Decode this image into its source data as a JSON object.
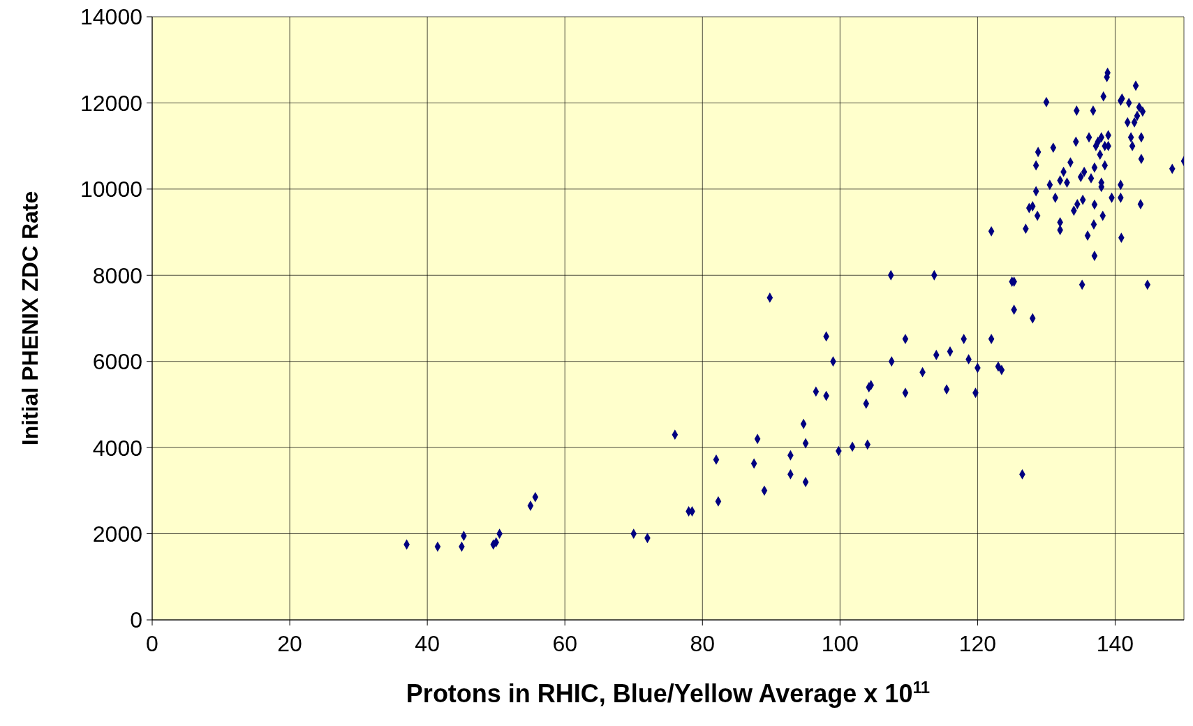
{
  "chart_data": {
    "type": "scatter",
    "xlabel": "Protons in RHIC, Blue/Yellow Average x 10$^{11}$",
    "ylabel": "Initial PHENIX ZDC Rate",
    "xlim": [
      0,
      150
    ],
    "xticks": [
      0,
      20,
      40,
      60,
      80,
      100,
      120,
      140
    ],
    "ylim": [
      0,
      14000
    ],
    "yticks": [
      0,
      2000,
      4000,
      6000,
      8000,
      10000,
      12000,
      14000
    ],
    "grid": true,
    "legend": false,
    "marker": "diamond",
    "series": [
      {
        "color": "#000080",
        "x": [
          37,
          41.5,
          45,
          45.3,
          49.6,
          50,
          50.5,
          55,
          55.7,
          70,
          72,
          76,
          78,
          78.5,
          82,
          82.3,
          87.5,
          88,
          89,
          89.8,
          92.8,
          92.8,
          94.7,
          95,
          95,
          96.5,
          98,
          98,
          99,
          99.8,
          101.8,
          103.8,
          104,
          104.2,
          104.5,
          107.4,
          107.5,
          109.5,
          109.5,
          112,
          113.7,
          114,
          115.5,
          116,
          118,
          118.7,
          119.7,
          120,
          122,
          122,
          123,
          123.5,
          125,
          125.3,
          125.3,
          126.5,
          127,
          127.5,
          128,
          128,
          128.5,
          128.5,
          128.7,
          128.8,
          130,
          130.5,
          131,
          131.3,
          132,
          132,
          132,
          132.5,
          133,
          133.5,
          134,
          134.3,
          134.4,
          134.5,
          135,
          135.2,
          135.3,
          135.5,
          136,
          136.2,
          136.5,
          136.8,
          136.9,
          137,
          137,
          137,
          137.2,
          137.5,
          137.8,
          138,
          138,
          138,
          138.2,
          138.3,
          138.5,
          138.5,
          138.8,
          138.9,
          139,
          139,
          139.5,
          140.8,
          140.8,
          140.8,
          140.9,
          141,
          141.8,
          142,
          142.3,
          142.5,
          142.8,
          143,
          143.2,
          143.5,
          143.7,
          143.8,
          143.8,
          144,
          144.7,
          148.3,
          150
        ],
        "values": [
          1750,
          1700,
          1700,
          1950,
          1750,
          1800,
          2000,
          2650,
          2850,
          2000,
          1900,
          4300,
          2520,
          2520,
          3720,
          2750,
          3630,
          4200,
          3000,
          7480,
          3820,
          3380,
          4550,
          4100,
          3200,
          5300,
          5200,
          6580,
          6000,
          3920,
          4020,
          5020,
          4070,
          5400,
          5450,
          8000,
          6000,
          6520,
          5270,
          5750,
          8000,
          6150,
          5350,
          6230,
          6520,
          6050,
          5270,
          5850,
          9020,
          6520,
          5880,
          5800,
          7850,
          7850,
          7200,
          3380,
          9080,
          9560,
          7000,
          9600,
          10550,
          9950,
          9380,
          10860,
          12020,
          10100,
          10960,
          9800,
          9230,
          9050,
          10200,
          10400,
          10150,
          10620,
          9500,
          11100,
          11820,
          9650,
          10280,
          7780,
          9750,
          10400,
          8920,
          11200,
          10250,
          11820,
          9180,
          10500,
          9640,
          8450,
          11000,
          11100,
          10800,
          10050,
          10150,
          11200,
          9380,
          12150,
          11000,
          10550,
          12600,
          12700,
          11250,
          11000,
          9800,
          12050,
          10100,
          9800,
          8870,
          12100,
          11550,
          12000,
          11200,
          11000,
          11550,
          12400,
          11700,
          11900,
          9650,
          10700,
          11200,
          11800,
          7780,
          10470,
          10650
        ]
      }
    ]
  }
}
